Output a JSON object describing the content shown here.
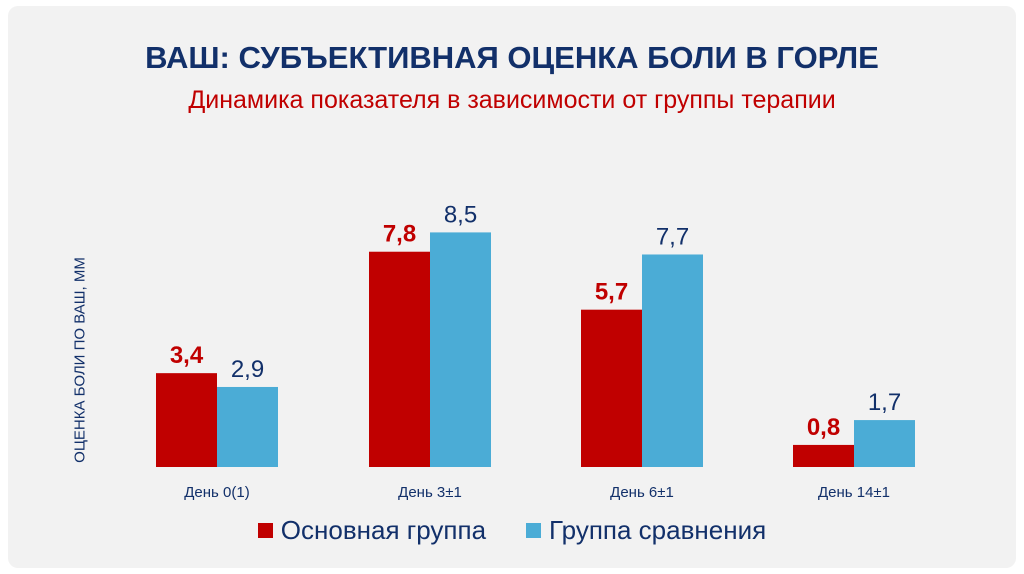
{
  "chart_data": {
    "type": "bar",
    "title": "ВАШ: СУБЪЕКТИВНАЯ ОЦЕНКА БОЛИ В ГОРЛЕ",
    "subtitle": "Динамика показателя в зависимости от группы терапии",
    "ylabel": "ОЦЕНКА БОЛИ ПО ВАШ, ММ",
    "xlabel": "",
    "categories": [
      "День 0(1)",
      "День 3±1",
      "День 6±1",
      "День 14±1"
    ],
    "series": [
      {
        "name": "Основная группа",
        "values": [
          3.4,
          7.8,
          5.7,
          0.8
        ],
        "labels": [
          "3,4",
          "7,8",
          "5,7",
          "0,8"
        ],
        "color": "#c00000"
      },
      {
        "name": "Группа сравнения",
        "values": [
          2.9,
          8.5,
          7.7,
          1.7
        ],
        "labels": [
          "2,9",
          "8,5",
          "7,7",
          "1,7"
        ],
        "color": "#4bacd6"
      }
    ],
    "ylim": [
      0,
      9
    ],
    "grid": false,
    "legend": "bottom"
  }
}
